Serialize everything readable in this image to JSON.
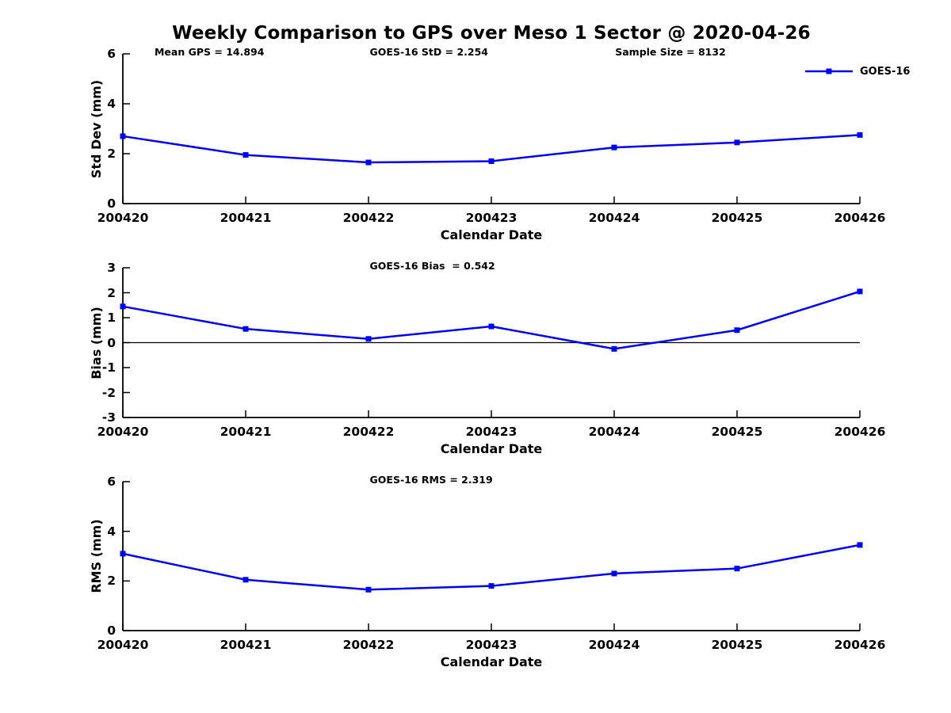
{
  "figure": {
    "title": "Weekly Comparison to GPS over Meso 1 Sector @ 2020-04-26"
  },
  "legend": {
    "label": "GOES-16",
    "color": "#0000ee"
  },
  "chart_data": [
    {
      "type": "line",
      "categories": [
        "200420",
        "200421",
        "200422",
        "200423",
        "200424",
        "200425",
        "200426"
      ],
      "series": [
        {
          "name": "GOES-16",
          "color": "#0000ee",
          "values": [
            2.7,
            1.95,
            1.65,
            1.7,
            2.25,
            2.45,
            2.75
          ]
        }
      ],
      "xlabel": "Calendar Date",
      "ylabel": "Std Dev (mm)",
      "ylim": [
        0,
        6
      ],
      "yticks": [
        0,
        2,
        4,
        6
      ],
      "grid": false,
      "zero_line": false,
      "legend_position": "outside-top-right",
      "annotations": [
        {
          "text": "Mean GPS = 14.894",
          "xfrac": 0.043
        },
        {
          "text": "GOES-16 StD = 2.254",
          "xfrac": 0.335
        },
        {
          "text": "Sample Size = 8132",
          "xfrac": 0.668
        }
      ]
    },
    {
      "type": "line",
      "categories": [
        "200420",
        "200421",
        "200422",
        "200423",
        "200424",
        "200425",
        "200426"
      ],
      "series": [
        {
          "name": "GOES-16",
          "color": "#0000ee",
          "values": [
            1.45,
            0.55,
            0.15,
            0.65,
            -0.25,
            0.5,
            2.05
          ]
        }
      ],
      "xlabel": "Calendar Date",
      "ylabel": "Bias (mm)",
      "ylim": [
        -3,
        3
      ],
      "yticks": [
        -3,
        -2,
        -1,
        0,
        1,
        2,
        3
      ],
      "grid": false,
      "zero_line": true,
      "annotations": [
        {
          "text": "GOES-16 Bias  = 0.542",
          "xfrac": 0.335
        }
      ]
    },
    {
      "type": "line",
      "categories": [
        "200420",
        "200421",
        "200422",
        "200423",
        "200424",
        "200425",
        "200426"
      ],
      "series": [
        {
          "name": "GOES-16",
          "color": "#0000ee",
          "values": [
            3.1,
            2.05,
            1.65,
            1.8,
            2.3,
            2.5,
            3.45
          ]
        }
      ],
      "xlabel": "Calendar Date",
      "ylabel": "RMS (mm)",
      "ylim": [
        0,
        6
      ],
      "yticks": [
        0,
        2,
        4,
        6
      ],
      "grid": false,
      "zero_line": false,
      "annotations": [
        {
          "text": "GOES-16 RMS = 2.319",
          "xfrac": 0.335
        }
      ]
    }
  ]
}
